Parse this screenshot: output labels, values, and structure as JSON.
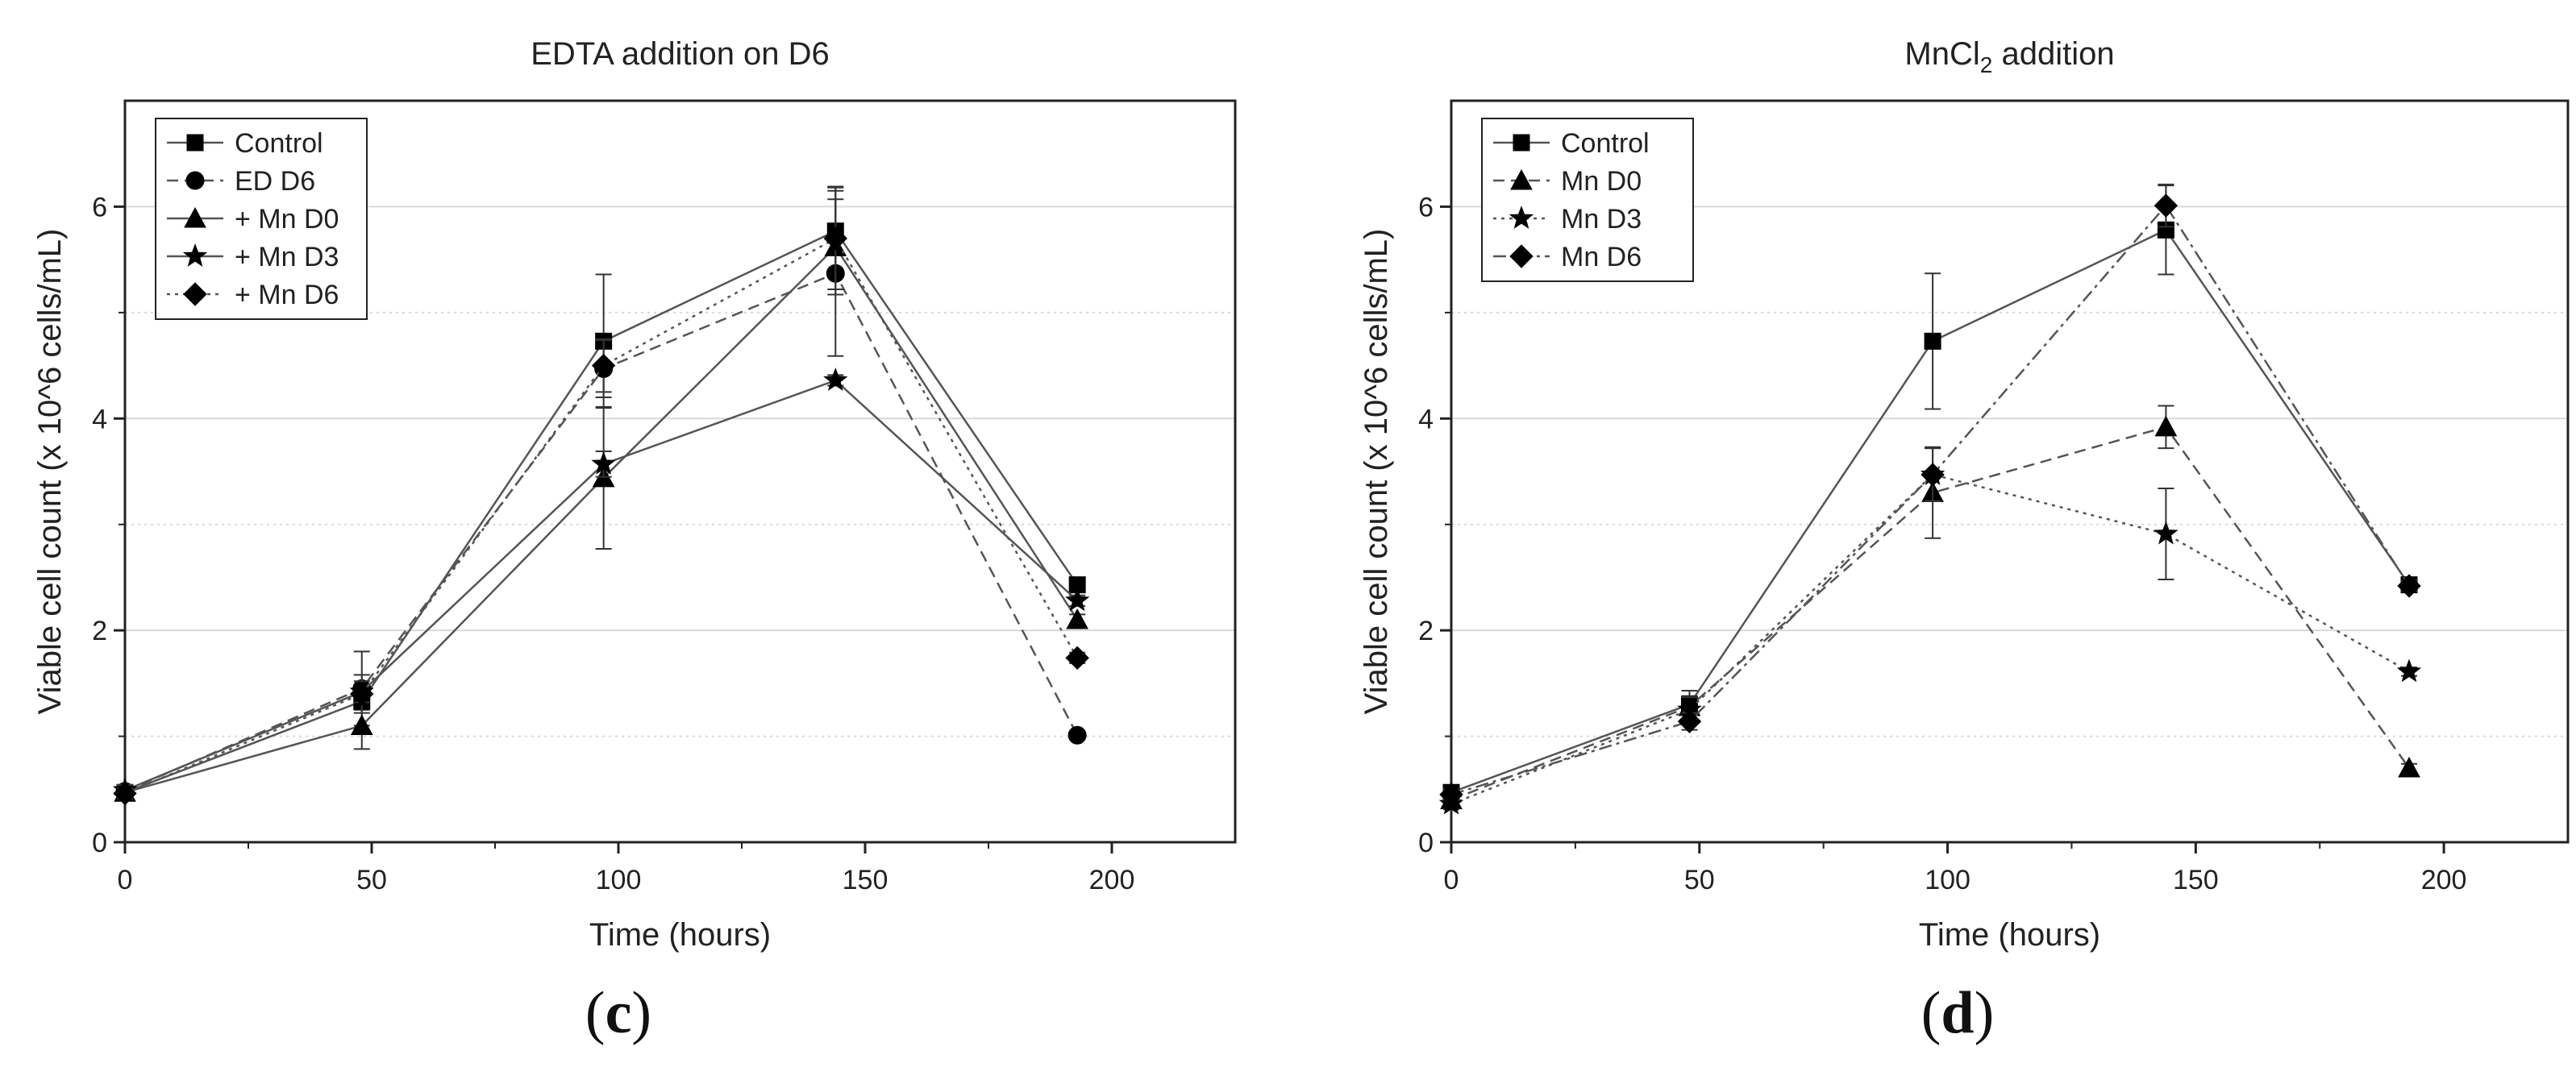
{
  "colors": {
    "axis": "#222222",
    "line": "#555555",
    "grid": "#d9d9d9",
    "marker": "#000000"
  },
  "panels": [
    {
      "label_open": "(",
      "label_letter": "c",
      "label_close": ")"
    },
    {
      "label_open": "(",
      "label_letter": "d",
      "label_close": ")"
    }
  ],
  "chart_data": [
    {
      "type": "line",
      "title": "EDTA addition on D6",
      "xlabel": "Time (hours)",
      "ylabel": "Viable cell count (x 10^6 cells/mL)",
      "xlim": [
        0,
        225
      ],
      "ylim": [
        0,
        7
      ],
      "xticks": [
        0,
        50,
        100,
        150,
        200
      ],
      "yticks": [
        0,
        2,
        4,
        6
      ],
      "x": [
        0,
        48,
        97,
        144,
        193
      ],
      "legend_position": "top-left",
      "series": [
        {
          "name": "Control",
          "marker": "square",
          "dash": "solid",
          "values": [
            0.47,
            1.33,
            4.73,
            5.77,
            2.43
          ],
          "errors": [
            0.06,
            0.08,
            0.63,
            0.42,
            0.06
          ]
        },
        {
          "name": "ED D6",
          "marker": "circle",
          "dash": "dashed",
          "values": [
            0.48,
            1.45,
            4.47,
            5.37,
            1.01
          ],
          "errors": [
            0.05,
            0.35,
            0.27,
            0.78,
            0.03
          ]
        },
        {
          "name": "+ Mn D0",
          "marker": "triangle",
          "dash": "solid",
          "values": [
            0.47,
            1.1,
            3.44,
            5.62,
            2.1
          ],
          "errors": [
            0.05,
            0.22,
            0.67,
            0.45,
            0.05
          ]
        },
        {
          "name": "+ Mn D3",
          "marker": "star",
          "dash": "solid",
          "values": [
            0.49,
            1.42,
            3.57,
            4.36,
            2.28
          ],
          "errors": [
            0.05,
            0.1,
            0.12,
            0.05,
            0.05
          ]
        },
        {
          "name": "+ Mn D6",
          "marker": "diamond",
          "dash": "dotted",
          "values": [
            0.46,
            1.4,
            4.5,
            5.7,
            1.74
          ],
          "errors": [
            0.05,
            0.18,
            0.25,
            0.48,
            0.05
          ]
        }
      ]
    },
    {
      "type": "line",
      "title_main": "MnCl",
      "title_sub": "2",
      "title_rest": " addition",
      "xlabel": "Time (hours)",
      "ylabel": "Viable cell count (x 10^6 cells/mL)",
      "xlim": [
        0,
        225
      ],
      "ylim": [
        0,
        7
      ],
      "xticks": [
        0,
        50,
        100,
        150,
        200
      ],
      "yticks": [
        0,
        2,
        4,
        6
      ],
      "x": [
        0,
        48,
        97,
        144,
        193
      ],
      "legend_position": "top-left",
      "series": [
        {
          "name": "Control",
          "marker": "square",
          "dash": "solid",
          "values": [
            0.47,
            1.3,
            4.73,
            5.78,
            2.43
          ],
          "errors": [
            0.05,
            0.08,
            0.64,
            0.42,
            0.05
          ]
        },
        {
          "name": "Mn D0",
          "marker": "triangle",
          "dash": "dashed",
          "values": [
            0.4,
            1.28,
            3.3,
            3.92,
            0.7
          ],
          "errors": [
            0.05,
            0.15,
            0.43,
            0.2,
            0.04
          ]
        },
        {
          "name": "Mn D3",
          "marker": "star",
          "dash": "dotted",
          "values": [
            0.36,
            1.25,
            3.47,
            2.91,
            1.61
          ],
          "errors": [
            0.05,
            0.12,
            0.25,
            0.43,
            0.04
          ]
        },
        {
          "name": "Mn D6",
          "marker": "diamond",
          "dash": "dashdot",
          "values": [
            0.45,
            1.14,
            3.47,
            6.01,
            2.42
          ],
          "errors": [
            0.05,
            0.08,
            0.25,
            0.2,
            0.05
          ]
        }
      ]
    }
  ]
}
